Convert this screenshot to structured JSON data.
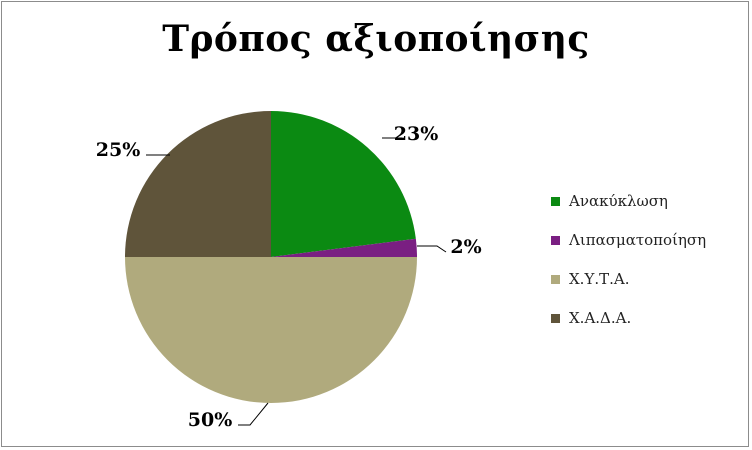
{
  "chart_data": {
    "type": "pie",
    "title": "Τρόπος αξιοποίησης",
    "categories": [
      "Ανακύκλωση",
      "Λιπασματοποίηση",
      "Χ.Υ.Τ.Α.",
      "Χ.Α.Δ.Α."
    ],
    "values": [
      23,
      2,
      50,
      25
    ],
    "data_labels": [
      "23%",
      "2%",
      "50%",
      "25%"
    ],
    "colors": [
      "#0b8a12",
      "#7a1f82",
      "#b0aa7d",
      "#5f543a"
    ],
    "legend_position": "right"
  }
}
